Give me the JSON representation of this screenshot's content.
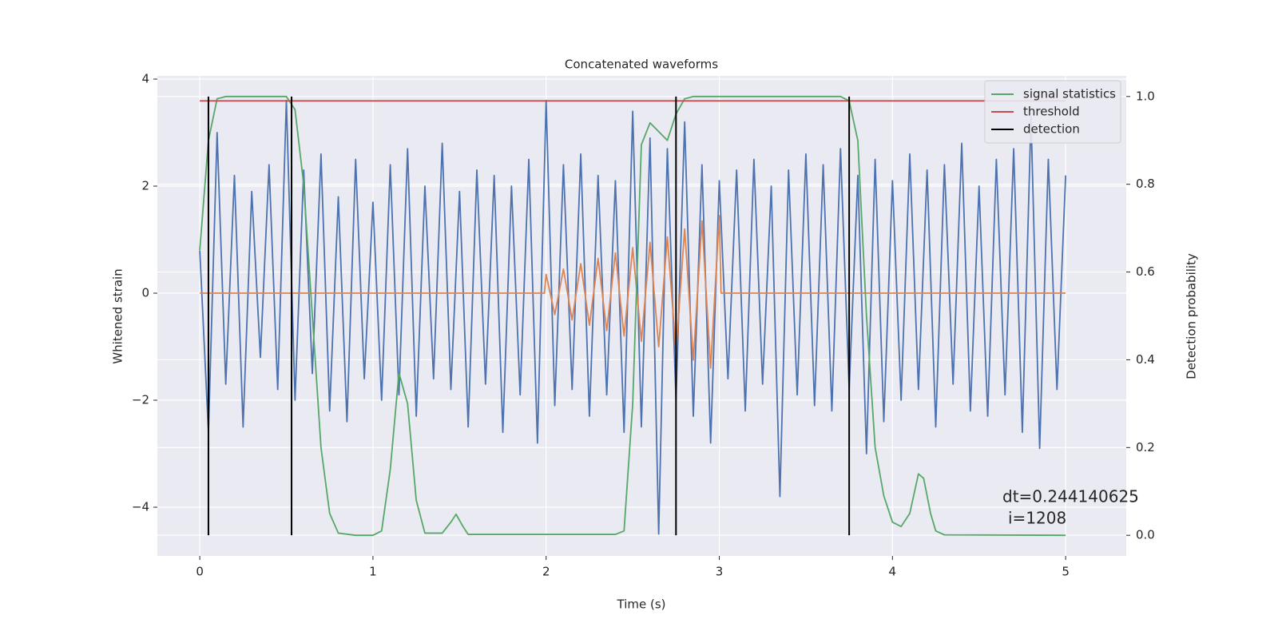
{
  "chart_data": {
    "type": "line",
    "title": "Concatenated waveforms",
    "x_label": "Time (s)",
    "y_label": "Whitened strain",
    "y2_label": "Detection probability",
    "xlim": [
      -0.245,
      5.35
    ],
    "ylim": [
      -4.91,
      4.06
    ],
    "y2lim": [
      -0.047,
      1.047
    ],
    "xticks": [
      0,
      1,
      2,
      3,
      4,
      5
    ],
    "yticks": [
      {
        "value": -4,
        "label": "−4"
      },
      {
        "value": -2,
        "label": "−2"
      },
      0,
      2,
      4
    ],
    "y2ticks": [
      {
        "value": 0,
        "label": "0.0"
      },
      0.2,
      0.4,
      0.6,
      0.8,
      {
        "value": 1,
        "label": "1.0"
      }
    ],
    "grid": true,
    "legend": "upper right",
    "annotation": [
      "dt=0.244140625",
      "i=1208"
    ],
    "series": [
      {
        "color": "#4c72b0",
        "x": [
          0,
          0.05,
          0.1,
          0.15,
          0.2,
          0.25,
          0.3,
          0.35,
          0.4,
          0.45,
          0.5,
          0.55,
          0.6,
          0.65,
          0.7,
          0.75,
          0.8,
          0.85,
          0.9,
          0.95,
          1,
          1.05,
          1.1,
          1.15,
          1.2,
          1.25,
          1.3,
          1.35,
          1.4,
          1.45,
          1.5,
          1.55,
          1.6,
          1.65,
          1.7,
          1.75,
          1.8,
          1.85,
          1.9,
          1.95,
          2,
          2.05,
          2.1,
          2.15,
          2.2,
          2.25,
          2.3,
          2.35,
          2.4,
          2.45,
          2.5,
          2.55,
          2.6,
          2.65,
          2.7,
          2.75,
          2.8,
          2.85,
          2.9,
          2.95,
          3,
          3.05,
          3.1,
          3.15,
          3.2,
          3.25,
          3.3,
          3.35,
          3.4,
          3.45,
          3.5,
          3.55,
          3.6,
          3.65,
          3.7,
          3.75,
          3.8,
          3.85,
          3.9,
          3.95,
          4,
          4.05,
          4.1,
          4.15,
          4.2,
          4.25,
          4.3,
          4.35,
          4.4,
          4.45,
          4.5,
          4.55,
          4.6,
          4.65,
          4.7,
          4.75,
          4.8,
          4.85,
          4.9,
          4.95,
          5
        ],
        "values": [
          0.8,
          -2.6,
          3.0,
          -1.7,
          2.2,
          -2.5,
          1.9,
          -1.2,
          2.4,
          -1.8,
          3.6,
          -2.0,
          2.3,
          -1.5,
          2.6,
          -2.2,
          1.8,
          -2.4,
          2.5,
          -1.6,
          1.7,
          -2.0,
          2.4,
          -1.9,
          2.7,
          -2.3,
          2.0,
          -1.6,
          2.8,
          -1.8,
          1.9,
          -2.5,
          2.3,
          -1.7,
          2.2,
          -2.6,
          2.0,
          -1.9,
          2.5,
          -2.8,
          3.6,
          -2.1,
          2.4,
          -1.8,
          2.6,
          -2.3,
          2.2,
          -1.9,
          2.1,
          -2.6,
          3.4,
          -2.5,
          2.9,
          -4.5,
          2.7,
          -2.0,
          3.2,
          -2.3,
          2.4,
          -2.8,
          2.1,
          -1.6,
          2.3,
          -2.2,
          2.5,
          -1.7,
          2.0,
          -3.8,
          2.3,
          -1.9,
          2.6,
          -2.1,
          2.4,
          -2.2,
          2.7,
          -1.8,
          2.2,
          -3.0,
          2.5,
          -2.4,
          2.1,
          -2.0,
          2.6,
          -1.8,
          2.3,
          -2.5,
          2.4,
          -1.7,
          2.8,
          -2.2,
          2.0,
          -2.3,
          2.5,
          -1.9,
          2.7,
          -2.6,
          3.3,
          -2.9,
          2.5,
          -1.8,
          2.2
        ]
      },
      {
        "color": "#dd8452",
        "x": [
          0,
          1.99,
          2,
          2.05,
          2.1,
          2.15,
          2.2,
          2.25,
          2.3,
          2.35,
          2.4,
          2.45,
          2.5,
          2.55,
          2.6,
          2.65,
          2.7,
          2.75,
          2.8,
          2.85,
          2.9,
          2.95,
          3,
          3.01,
          5
        ],
        "values": [
          0,
          0,
          0.35,
          -0.4,
          0.45,
          -0.5,
          0.55,
          -0.6,
          0.65,
          -0.7,
          0.75,
          -0.8,
          0.85,
          -0.9,
          0.95,
          -1.0,
          1.05,
          -1.1,
          1.2,
          -1.25,
          1.35,
          -1.4,
          1.45,
          0,
          0
        ]
      },
      {
        "name": "signal statistics",
        "color": "#55a868",
        "axis": "y2",
        "x": [
          0,
          0.05,
          0.1,
          0.15,
          0.5,
          0.55,
          0.6,
          0.65,
          0.7,
          0.75,
          0.8,
          0.9,
          1,
          1.05,
          1.1,
          1.15,
          1.2,
          1.25,
          1.3,
          1.4,
          1.45,
          1.48,
          1.52,
          1.55,
          2.4,
          2.45,
          2.5,
          2.55,
          2.6,
          2.65,
          2.7,
          2.75,
          2.8,
          2.85,
          3.7,
          3.75,
          3.8,
          3.85,
          3.9,
          3.95,
          4,
          4.05,
          4.1,
          4.15,
          4.18,
          4.22,
          4.25,
          4.3,
          5
        ],
        "values": [
          0.65,
          0.9,
          0.995,
          1,
          1,
          0.97,
          0.8,
          0.5,
          0.2,
          0.05,
          0.005,
          0,
          0,
          0.01,
          0.15,
          0.37,
          0.3,
          0.08,
          0.005,
          0.005,
          0.03,
          0.048,
          0.02,
          0.002,
          0.002,
          0.01,
          0.3,
          0.89,
          0.94,
          0.92,
          0.9,
          0.96,
          0.995,
          1,
          1,
          0.99,
          0.9,
          0.5,
          0.2,
          0.09,
          0.03,
          0.02,
          0.05,
          0.14,
          0.13,
          0.05,
          0.01,
          0.001,
          0
        ]
      },
      {
        "name": "threshold",
        "color": "#c44e52",
        "axis": "y2",
        "x": [
          0,
          5
        ],
        "values": [
          0.99,
          0.99
        ]
      },
      {
        "name": "detection",
        "color": "#000000",
        "type": "vlines",
        "x": [
          0.05,
          0.53,
          2.75,
          3.75
        ]
      }
    ]
  }
}
